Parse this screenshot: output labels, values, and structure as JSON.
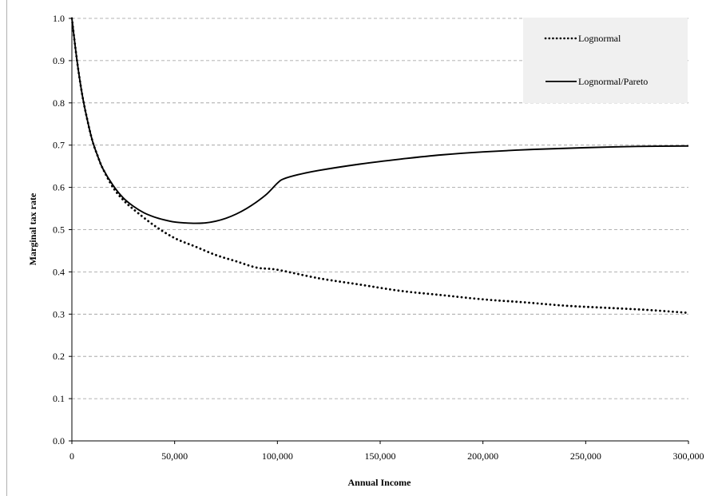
{
  "chart_data": {
    "type": "line",
    "title": "",
    "xlabel": "Annual Income",
    "ylabel": "Marginal tax rate",
    "xlim": [
      0,
      300000
    ],
    "ylim": [
      0,
      1.0
    ],
    "x_ticks": [
      0,
      50000,
      100000,
      150000,
      200000,
      250000,
      300000
    ],
    "x_tick_labels": [
      "0",
      "50,000",
      "100,000",
      "150,000",
      "200,000",
      "250,000",
      "300,000"
    ],
    "y_ticks": [
      0,
      0.1,
      0.2,
      0.3,
      0.4,
      0.5,
      0.6,
      0.7,
      0.8,
      0.9,
      1.0
    ],
    "y_tick_labels": [
      "0.0",
      "0.1",
      "0.2",
      "0.3",
      "0.4",
      "0.5",
      "0.6",
      "0.7",
      "0.8",
      "0.9",
      "1.0"
    ],
    "grid": "horizontal dashed",
    "legend_position": "top-right",
    "series": [
      {
        "name": "Lognormal",
        "style": "dotted",
        "color": "#000000",
        "x": [
          0,
          2500,
          5000,
          7500,
          10000,
          12500,
          15000,
          20000,
          25000,
          30000,
          40000,
          50000,
          60000,
          70000,
          80000,
          90000,
          100000,
          120000,
          140000,
          160000,
          180000,
          200000,
          220000,
          240000,
          260000,
          280000,
          300000
        ],
        "y": [
          1.0,
          0.9,
          0.82,
          0.76,
          0.71,
          0.675,
          0.645,
          0.6,
          0.57,
          0.548,
          0.51,
          0.48,
          0.46,
          0.44,
          0.425,
          0.41,
          0.405,
          0.385,
          0.37,
          0.355,
          0.345,
          0.335,
          0.328,
          0.32,
          0.315,
          0.31,
          0.303
        ]
      },
      {
        "name": "Lognormal/Pareto",
        "style": "solid",
        "color": "#000000",
        "x": [
          0,
          2500,
          5000,
          7500,
          10000,
          12500,
          15000,
          20000,
          25000,
          30000,
          35000,
          40000,
          45000,
          50000,
          55000,
          60000,
          65000,
          70000,
          75000,
          80000,
          85000,
          90000,
          95000,
          100000,
          103000,
          110000,
          120000,
          140000,
          160000,
          180000,
          200000,
          225000,
          250000,
          275000,
          300000
        ],
        "y": [
          1.0,
          0.9,
          0.82,
          0.76,
          0.71,
          0.675,
          0.645,
          0.605,
          0.575,
          0.555,
          0.54,
          0.53,
          0.523,
          0.518,
          0.516,
          0.515,
          0.516,
          0.52,
          0.527,
          0.537,
          0.55,
          0.566,
          0.585,
          0.61,
          0.62,
          0.63,
          0.64,
          0.655,
          0.667,
          0.677,
          0.684,
          0.69,
          0.694,
          0.697,
          0.698
        ]
      }
    ]
  }
}
